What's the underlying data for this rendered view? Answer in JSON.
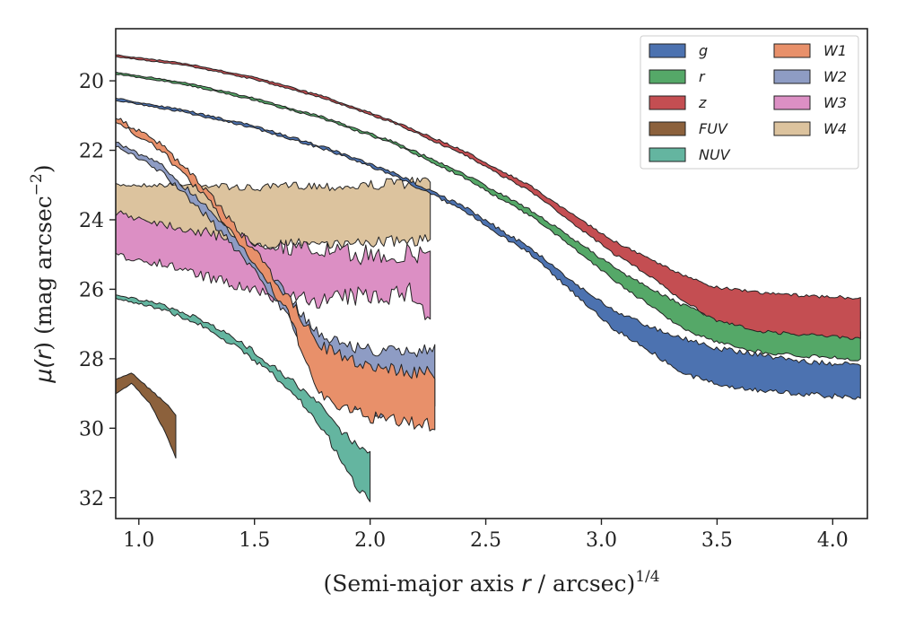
{
  "chart_data": {
    "type": "area",
    "title": "",
    "xlabel_parts": {
      "prefix": "(Semi-major axis ",
      "var": "r",
      "suffix": " / arcsec)",
      "sup": "1/4"
    },
    "ylabel_parts": {
      "prefix": "μ(",
      "var": "r",
      "suffix": ") (mag arcsec",
      "sup": "−2",
      "close": ")"
    },
    "xlim": [
      0.9,
      4.15
    ],
    "ylim": [
      32.6,
      18.5
    ],
    "y_inverted": true,
    "xticks": [
      1.0,
      1.5,
      2.0,
      2.5,
      3.0,
      3.5,
      4.0
    ],
    "xtick_labels": [
      "1.0",
      "1.5",
      "2.0",
      "2.5",
      "3.0",
      "3.5",
      "4.0"
    ],
    "yticks": [
      20,
      22,
      24,
      26,
      28,
      30,
      32
    ],
    "ytick_labels": [
      "20",
      "22",
      "24",
      "26",
      "28",
      "30",
      "32"
    ],
    "grid": false,
    "legend_position": "top-right",
    "legend_columns": 2,
    "series": [
      {
        "name": "g",
        "color": "#4c72b0",
        "jitter": 0.08,
        "x": [
          0.9,
          1.2,
          1.5,
          1.8,
          2.1,
          2.4,
          2.7,
          2.9,
          3.05,
          3.2,
          3.35,
          3.5,
          3.7,
          3.9,
          4.12
        ],
        "lo": [
          20.5,
          20.85,
          21.3,
          21.9,
          22.65,
          23.6,
          24.85,
          25.9,
          26.6,
          27.05,
          27.4,
          27.7,
          27.9,
          28.1,
          28.2
        ],
        "hi": [
          20.55,
          20.9,
          21.35,
          21.95,
          22.7,
          23.7,
          25.0,
          26.2,
          27.1,
          27.7,
          28.4,
          28.7,
          28.9,
          29.0,
          29.1
        ]
      },
      {
        "name": "r",
        "color": "#55a868",
        "jitter": 0.06,
        "x": [
          0.9,
          1.2,
          1.5,
          1.8,
          2.1,
          2.4,
          2.7,
          2.9,
          3.05,
          3.2,
          3.35,
          3.5,
          3.7,
          3.9,
          4.12
        ],
        "lo": [
          19.75,
          20.05,
          20.5,
          21.05,
          21.75,
          22.65,
          23.75,
          24.65,
          25.35,
          25.95,
          26.45,
          26.85,
          27.05,
          27.15,
          27.2
        ],
        "hi": [
          19.8,
          20.1,
          20.55,
          21.1,
          21.8,
          22.75,
          23.9,
          24.9,
          25.7,
          26.4,
          27.1,
          27.5,
          27.8,
          27.9,
          28.0
        ]
      },
      {
        "name": "z",
        "color": "#c44e52",
        "jitter": 0.05,
        "x": [
          0.9,
          1.2,
          1.5,
          1.8,
          2.1,
          2.4,
          2.7,
          2.9,
          3.05,
          3.2,
          3.35,
          3.5,
          3.7,
          3.9,
          4.12
        ],
        "lo": [
          19.25,
          19.5,
          19.9,
          20.45,
          21.15,
          22.0,
          23.05,
          23.95,
          24.6,
          25.1,
          25.6,
          25.95,
          26.1,
          26.2,
          26.25
        ],
        "hi": [
          19.3,
          19.55,
          19.95,
          20.5,
          21.2,
          22.1,
          23.2,
          24.2,
          24.95,
          25.55,
          26.3,
          26.9,
          27.2,
          27.3,
          27.4
        ]
      },
      {
        "name": "FUV",
        "color": "#8c613c",
        "jitter": 0.03,
        "x": [
          0.9,
          0.97,
          1.05,
          1.12,
          1.16
        ],
        "lo": [
          28.6,
          28.4,
          28.9,
          29.3,
          29.6
        ],
        "hi": [
          29.0,
          28.7,
          29.3,
          30.2,
          30.85
        ]
      },
      {
        "name": "NUV",
        "color": "#64b5a0",
        "jitter": 0.12,
        "x": [
          0.9,
          1.1,
          1.3,
          1.5,
          1.6,
          1.7,
          1.8,
          1.88,
          1.95,
          2.0
        ],
        "lo": [
          26.15,
          26.45,
          26.95,
          27.8,
          28.3,
          28.85,
          29.45,
          30.1,
          30.5,
          30.7
        ],
        "hi": [
          26.25,
          26.55,
          27.1,
          28.0,
          28.55,
          29.2,
          30.0,
          31.0,
          31.7,
          32.0
        ]
      },
      {
        "name": "W1",
        "color": "#e8906a",
        "jitter": 0.22,
        "x": [
          0.9,
          1.1,
          1.3,
          1.5,
          1.65,
          1.78,
          1.9,
          2.0,
          2.1,
          2.2,
          2.28
        ],
        "lo": [
          21.05,
          21.85,
          23.2,
          24.9,
          26.3,
          27.6,
          28.0,
          28.2,
          28.3,
          28.4,
          28.4
        ],
        "hi": [
          21.15,
          22.0,
          23.4,
          25.2,
          26.7,
          29.0,
          29.4,
          29.6,
          29.7,
          29.8,
          29.8
        ]
      },
      {
        "name": "W2",
        "color": "#8e9cc4",
        "jitter": 0.22,
        "x": [
          0.9,
          1.1,
          1.3,
          1.5,
          1.65,
          1.78,
          1.9,
          2.0,
          2.1,
          2.2,
          2.28
        ],
        "lo": [
          21.75,
          22.45,
          23.65,
          25.05,
          26.25,
          27.3,
          27.6,
          27.75,
          27.8,
          27.8,
          27.6
        ],
        "hi": [
          21.85,
          22.6,
          23.9,
          25.4,
          26.8,
          28.4,
          29.3,
          29.5,
          29.5,
          29.4,
          29.3
        ]
      },
      {
        "name": "W3",
        "color": "#dc8fc4",
        "jitter": 0.35,
        "x": [
          0.9,
          1.1,
          1.3,
          1.5,
          1.65,
          1.8,
          1.95,
          2.1,
          2.2,
          2.26
        ],
        "lo": [
          23.8,
          24.1,
          24.4,
          24.6,
          24.8,
          24.9,
          25.0,
          25.0,
          25.0,
          24.9
        ],
        "hi": [
          25.0,
          25.2,
          25.6,
          26.0,
          26.2,
          26.2,
          26.1,
          26.0,
          26.0,
          26.9
        ]
      },
      {
        "name": "W4",
        "color": "#dcc39e",
        "jitter": 0.18,
        "x": [
          0.9,
          1.1,
          1.3,
          1.5,
          1.7,
          1.9,
          2.1,
          2.26
        ],
        "lo": [
          23.0,
          23.0,
          23.0,
          23.1,
          23.0,
          23.05,
          22.95,
          22.9
        ],
        "hi": [
          24.5,
          24.55,
          24.6,
          24.7,
          24.6,
          24.65,
          24.55,
          24.5
        ]
      }
    ]
  }
}
